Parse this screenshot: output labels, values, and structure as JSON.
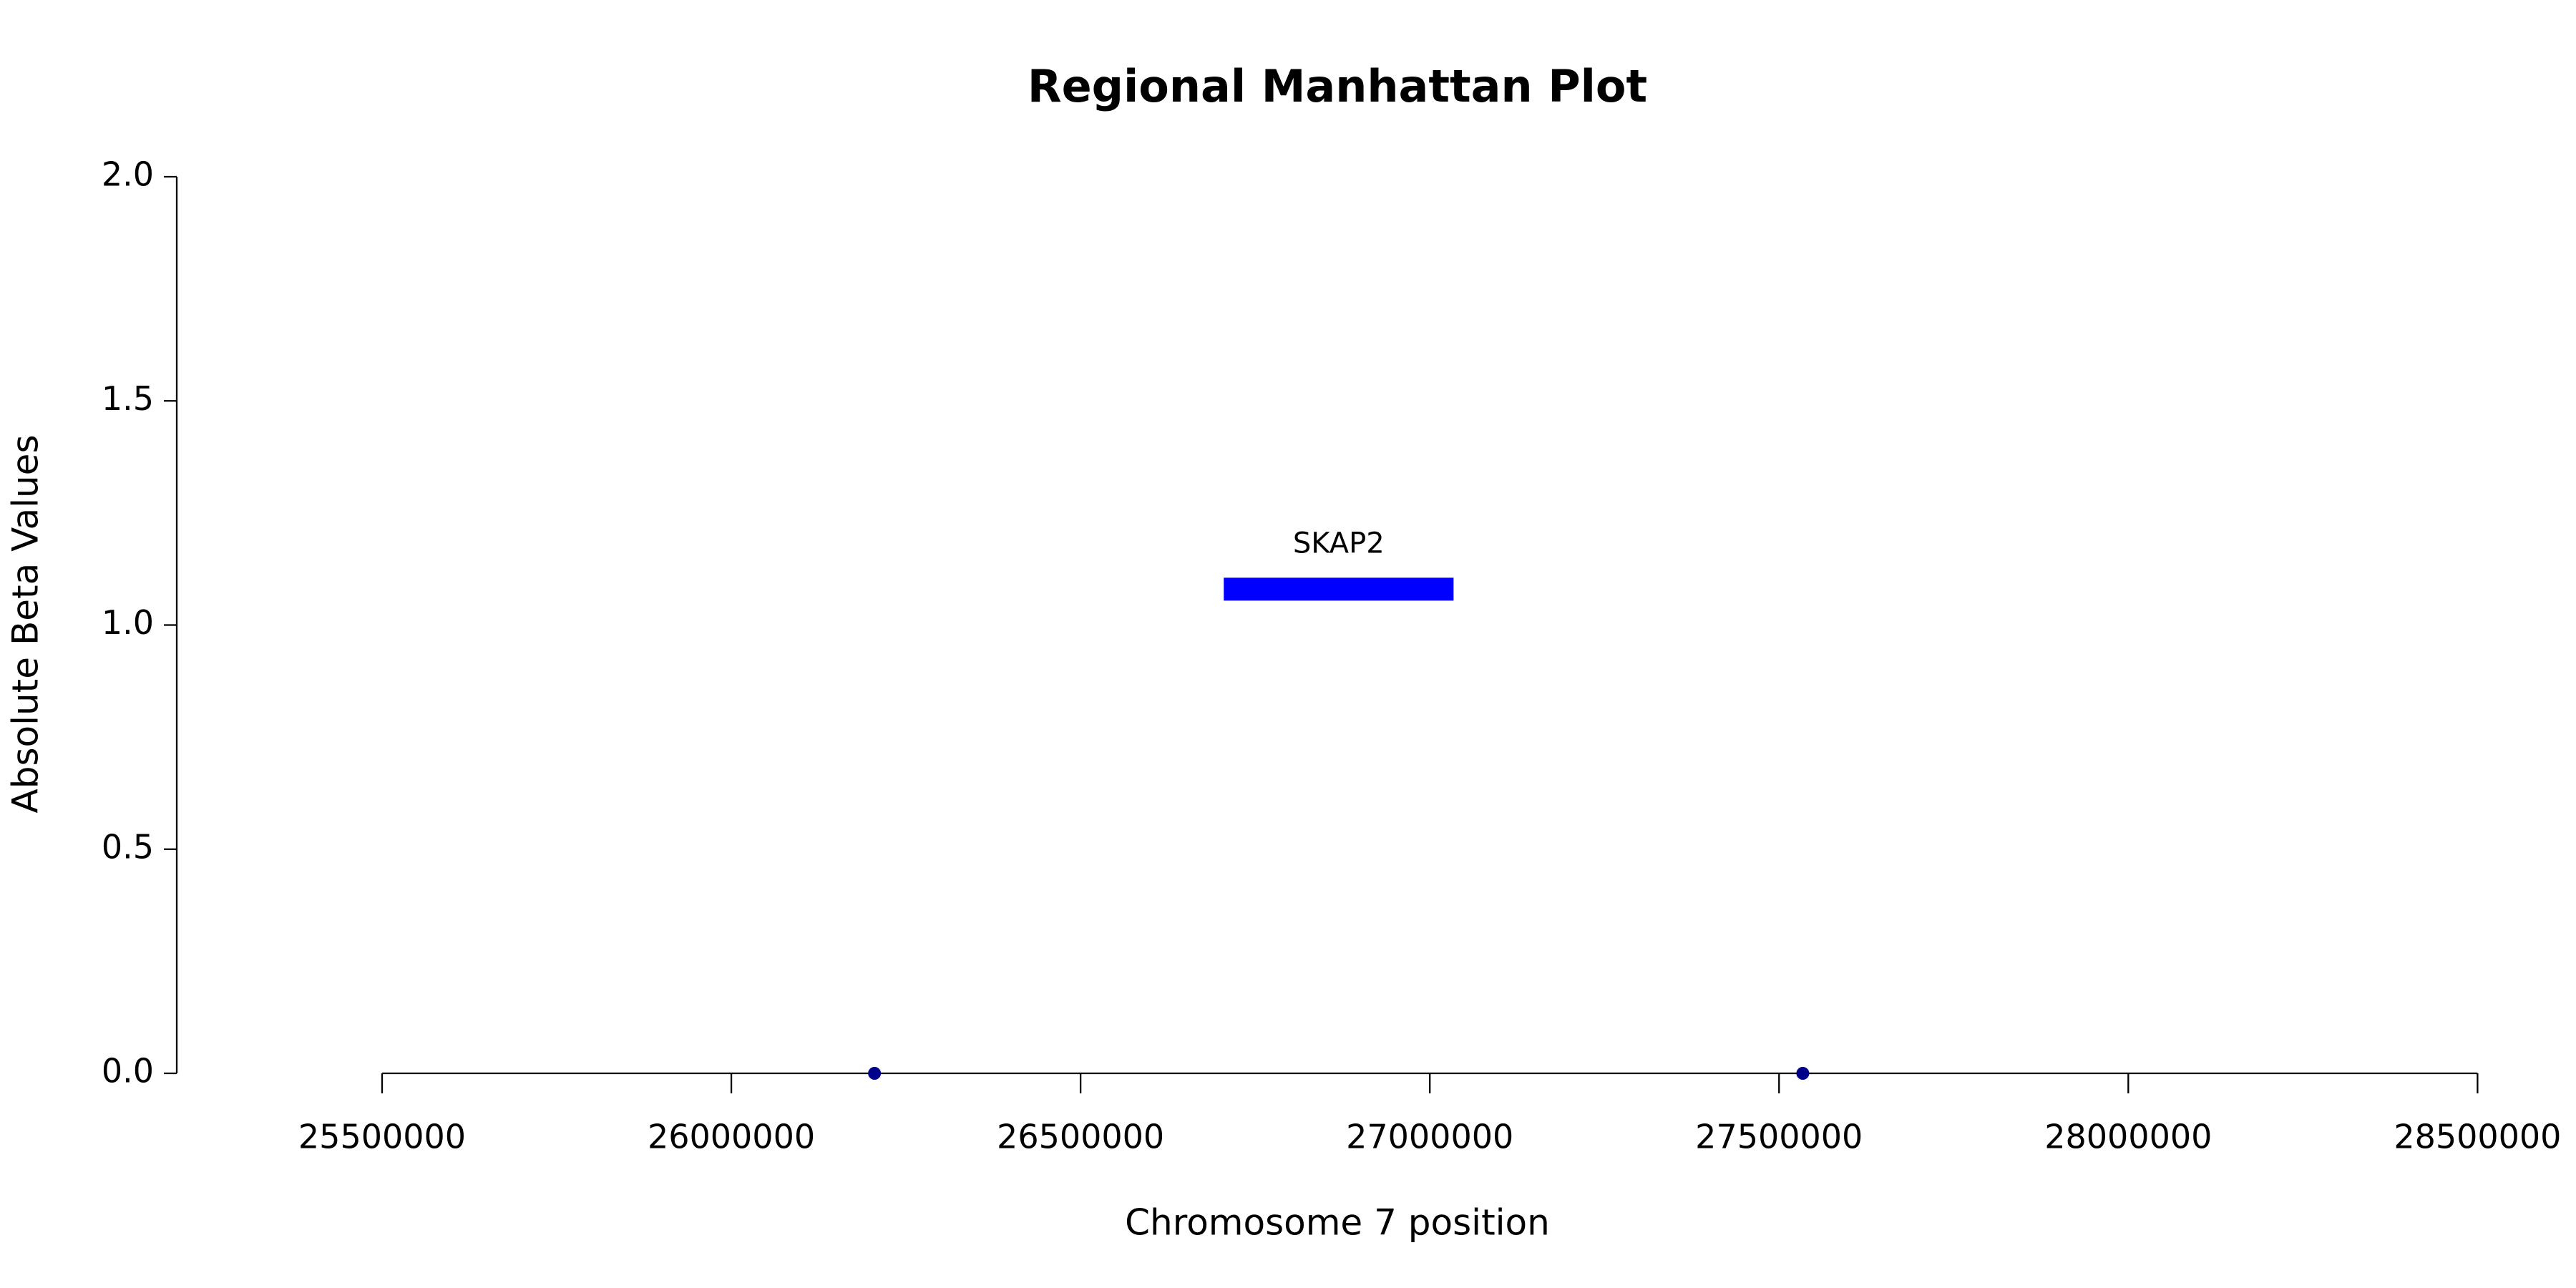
{
  "chart_data": {
    "type": "scatter",
    "title": "Regional Manhattan Plot",
    "x_label": "Chromosome 7 position",
    "y_label": "Absolute Beta Values",
    "series": [
      {
        "color": "#00008b",
        "x": [
          26205000,
          27534000
        ],
        "values": [
          0,
          0
        ]
      }
    ],
    "genes": [
      {
        "label": "SKAP2",
        "start": 26705000,
        "end": 27034000,
        "y": 1.08,
        "color": "#0000ff"
      }
    ],
    "xlim": [
      25206000,
      28600000
    ],
    "xticks": [
      25500000,
      26000000,
      26500000,
      27000000,
      27500000,
      28000000,
      28500000
    ],
    "ylim": [
      0,
      2
    ],
    "yticks": [
      0.0,
      0.5,
      1.0,
      1.5,
      2.0
    ],
    "grid": false
  }
}
